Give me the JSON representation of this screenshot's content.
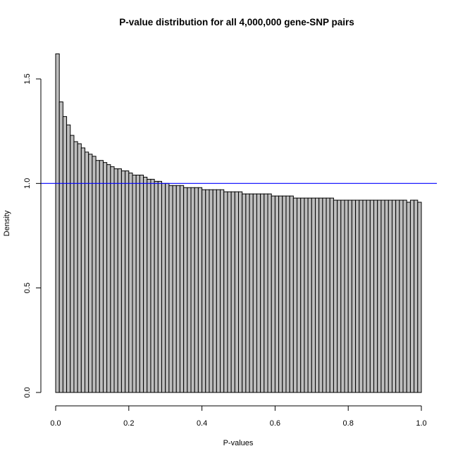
{
  "chart_data": {
    "type": "bar",
    "subtype": "histogram",
    "title": "P-value distribution for all 4,000,000 gene-SNP pairs",
    "xlabel": "P-values",
    "ylabel": "Density",
    "xlim": [
      0,
      1
    ],
    "ylim": [
      0,
      1.62
    ],
    "bin_width": 0.01,
    "x_ticks": [
      0.0,
      0.2,
      0.4,
      0.6,
      0.8,
      1.0
    ],
    "x_tick_labels": [
      "0.0",
      "0.2",
      "0.4",
      "0.6",
      "0.8",
      "1.0"
    ],
    "y_ticks": [
      0.0,
      0.5,
      1.0,
      1.5
    ],
    "y_tick_labels": [
      "0.0",
      "0.5",
      "1.0",
      "1.5"
    ],
    "grid": false,
    "legend": "none",
    "bar_fill": "#bebebe",
    "bar_stroke": "#000000",
    "reference_line": {
      "orientation": "horizontal",
      "y": 1.0,
      "color": "#0000ff"
    },
    "values": [
      1.62,
      1.39,
      1.32,
      1.28,
      1.23,
      1.2,
      1.19,
      1.17,
      1.15,
      1.14,
      1.13,
      1.11,
      1.11,
      1.1,
      1.09,
      1.08,
      1.07,
      1.07,
      1.06,
      1.06,
      1.05,
      1.04,
      1.04,
      1.04,
      1.03,
      1.02,
      1.02,
      1.01,
      1.01,
      1.0,
      1.0,
      0.99,
      0.99,
      0.99,
      0.99,
      0.98,
      0.98,
      0.98,
      0.98,
      0.98,
      0.97,
      0.97,
      0.97,
      0.97,
      0.97,
      0.97,
      0.96,
      0.96,
      0.96,
      0.96,
      0.96,
      0.95,
      0.95,
      0.95,
      0.95,
      0.95,
      0.95,
      0.95,
      0.95,
      0.94,
      0.94,
      0.94,
      0.94,
      0.94,
      0.94,
      0.93,
      0.93,
      0.93,
      0.93,
      0.93,
      0.93,
      0.93,
      0.93,
      0.93,
      0.93,
      0.93,
      0.92,
      0.92,
      0.92,
      0.92,
      0.92,
      0.92,
      0.92,
      0.92,
      0.92,
      0.92,
      0.92,
      0.92,
      0.92,
      0.92,
      0.92,
      0.92,
      0.92,
      0.92,
      0.92,
      0.92,
      0.91,
      0.92,
      0.92,
      0.91
    ]
  }
}
